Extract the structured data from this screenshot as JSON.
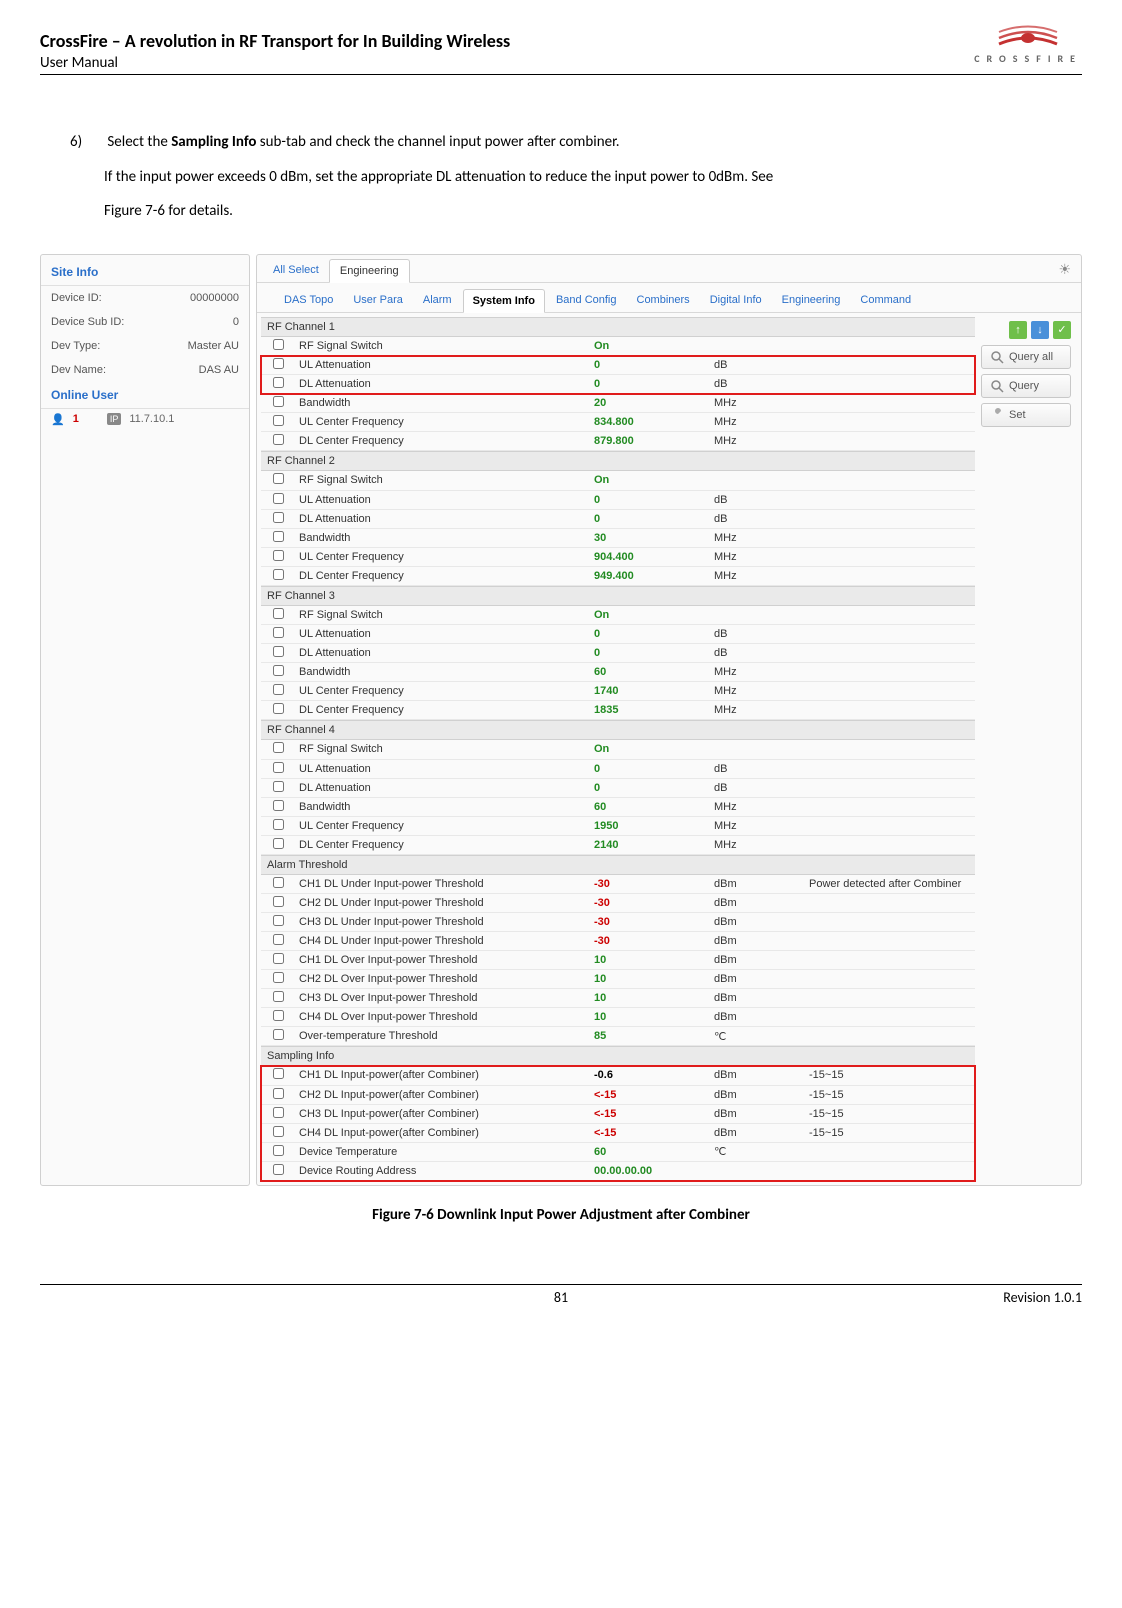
{
  "header": {
    "title": "CrossFire – A revolution in RF Transport for In Building Wireless",
    "subtitle": "User Manual",
    "logo_text": "CROSSFIRE",
    "logo_color": "#c43131"
  },
  "body": {
    "step_num": "6)",
    "line1_pre": "Select the ",
    "line1_bold": "Sampling Info",
    "line1_post": " sub-tab and check the channel input power after combiner.",
    "line2": "If the input power exceeds 0 dBm, set the appropriate DL attenuation to reduce the input power to 0dBm. See",
    "line3": "Figure 7-6 for details."
  },
  "sidebar": {
    "site_info_label": "Site Info",
    "rows": [
      {
        "label": "Device ID:",
        "value": "00000000"
      },
      {
        "label": "Device Sub ID:",
        "value": "0"
      },
      {
        "label": "Dev Type:",
        "value": "Master AU"
      },
      {
        "label": "Dev Name:",
        "value": "DAS AU"
      }
    ],
    "online_user_label": "Online User",
    "online_user_num": "1",
    "online_ip_label": "IP",
    "online_ip": "11.7.10.1"
  },
  "top_tabs": {
    "all_select": "All Select",
    "engineering": "Engineering"
  },
  "sub_tabs": [
    "DAS Topo",
    "User Para",
    "Alarm",
    "System Info",
    "Band Config",
    "Combiners",
    "Digital Info",
    "Engineering",
    "Command"
  ],
  "sub_tab_active": 3,
  "buttons": {
    "query_all": "Query all",
    "query": "Query",
    "set": "Set",
    "icon_up_color": "#6fbf4a",
    "icon_down_color": "#4a90d9",
    "icon_check_color": "#6fbf4a"
  },
  "groups": [
    {
      "header": "RF Channel 1",
      "highlight_rows": [
        1,
        2
      ],
      "rows": [
        {
          "label": "RF Signal Switch",
          "value": "On",
          "cls": "green",
          "unit": "",
          "note": ""
        },
        {
          "label": "UL Attenuation",
          "value": "0",
          "cls": "green",
          "unit": "dB",
          "note": ""
        },
        {
          "label": "DL Attenuation",
          "value": "0",
          "cls": "green",
          "unit": "dB",
          "note": ""
        },
        {
          "label": "Bandwidth",
          "value": "20",
          "cls": "green",
          "unit": "MHz",
          "note": ""
        },
        {
          "label": "UL Center Frequency",
          "value": "834.800",
          "cls": "green",
          "unit": "MHz",
          "note": ""
        },
        {
          "label": "DL Center Frequency",
          "value": "879.800",
          "cls": "green",
          "unit": "MHz",
          "note": ""
        }
      ]
    },
    {
      "header": "RF Channel 2",
      "rows": [
        {
          "label": "RF Signal Switch",
          "value": "On",
          "cls": "green",
          "unit": "",
          "note": ""
        },
        {
          "label": "UL Attenuation",
          "value": "0",
          "cls": "green",
          "unit": "dB",
          "note": ""
        },
        {
          "label": "DL Attenuation",
          "value": "0",
          "cls": "green",
          "unit": "dB",
          "note": ""
        },
        {
          "label": "Bandwidth",
          "value": "30",
          "cls": "green",
          "unit": "MHz",
          "note": ""
        },
        {
          "label": "UL Center Frequency",
          "value": "904.400",
          "cls": "green",
          "unit": "MHz",
          "note": ""
        },
        {
          "label": "DL Center Frequency",
          "value": "949.400",
          "cls": "green",
          "unit": "MHz",
          "note": ""
        }
      ]
    },
    {
      "header": "RF Channel 3",
      "rows": [
        {
          "label": "RF Signal Switch",
          "value": "On",
          "cls": "green",
          "unit": "",
          "note": ""
        },
        {
          "label": "UL Attenuation",
          "value": "0",
          "cls": "green",
          "unit": "dB",
          "note": ""
        },
        {
          "label": "DL Attenuation",
          "value": "0",
          "cls": "green",
          "unit": "dB",
          "note": ""
        },
        {
          "label": "Bandwidth",
          "value": "60",
          "cls": "green",
          "unit": "MHz",
          "note": ""
        },
        {
          "label": "UL Center Frequency",
          "value": "1740",
          "cls": "green",
          "unit": "MHz",
          "note": ""
        },
        {
          "label": "DL Center Frequency",
          "value": "1835",
          "cls": "green",
          "unit": "MHz",
          "note": ""
        }
      ]
    },
    {
      "header": "RF Channel 4",
      "rows": [
        {
          "label": "RF Signal Switch",
          "value": "On",
          "cls": "green",
          "unit": "",
          "note": ""
        },
        {
          "label": "UL Attenuation",
          "value": "0",
          "cls": "green",
          "unit": "dB",
          "note": ""
        },
        {
          "label": "DL Attenuation",
          "value": "0",
          "cls": "green",
          "unit": "dB",
          "note": ""
        },
        {
          "label": "Bandwidth",
          "value": "60",
          "cls": "green",
          "unit": "MHz",
          "note": ""
        },
        {
          "label": "UL Center Frequency",
          "value": "1950",
          "cls": "green",
          "unit": "MHz",
          "note": ""
        },
        {
          "label": "DL Center Frequency",
          "value": "2140",
          "cls": "green",
          "unit": "MHz",
          "note": ""
        }
      ]
    },
    {
      "header": "Alarm Threshold",
      "rows": [
        {
          "label": "CH1 DL Under Input-power Threshold",
          "value": "-30",
          "cls": "red",
          "unit": "dBm",
          "note": "Power detected after Combiner"
        },
        {
          "label": "CH2 DL Under Input-power Threshold",
          "value": "-30",
          "cls": "red",
          "unit": "dBm",
          "note": ""
        },
        {
          "label": "CH3 DL Under Input-power Threshold",
          "value": "-30",
          "cls": "red",
          "unit": "dBm",
          "note": ""
        },
        {
          "label": "CH4 DL Under Input-power Threshold",
          "value": "-30",
          "cls": "red",
          "unit": "dBm",
          "note": ""
        },
        {
          "label": "CH1 DL Over Input-power Threshold",
          "value": "10",
          "cls": "green",
          "unit": "dBm",
          "note": ""
        },
        {
          "label": "CH2 DL Over Input-power Threshold",
          "value": "10",
          "cls": "green",
          "unit": "dBm",
          "note": ""
        },
        {
          "label": "CH3 DL Over Input-power Threshold",
          "value": "10",
          "cls": "green",
          "unit": "dBm",
          "note": ""
        },
        {
          "label": "CH4 DL Over Input-power Threshold",
          "value": "10",
          "cls": "green",
          "unit": "dBm",
          "note": ""
        },
        {
          "label": "Over-temperature Threshold",
          "value": "85",
          "cls": "green",
          "unit": "℃",
          "note": ""
        }
      ]
    },
    {
      "header": "Sampling Info",
      "highlight_all": true,
      "rows": [
        {
          "label": "CH1 DL Input-power(after Combiner)",
          "value": "-0.6",
          "cls": "black",
          "unit": "dBm",
          "note": "-15~15"
        },
        {
          "label": "CH2 DL Input-power(after Combiner)",
          "value": "<-15",
          "cls": "red",
          "unit": "dBm",
          "note": "-15~15"
        },
        {
          "label": "CH3 DL Input-power(after Combiner)",
          "value": "<-15",
          "cls": "red",
          "unit": "dBm",
          "note": "-15~15"
        },
        {
          "label": "CH4 DL Input-power(after Combiner)",
          "value": "<-15",
          "cls": "red",
          "unit": "dBm",
          "note": "-15~15"
        },
        {
          "label": "Device Temperature",
          "value": "60",
          "cls": "green",
          "unit": "℃",
          "note": ""
        },
        {
          "label": "Device Routing Address",
          "value": "00.00.00.00",
          "cls": "green",
          "unit": "",
          "note": ""
        }
      ]
    }
  ],
  "figure_caption": "Figure 7-6 Downlink Input Power Adjustment after Combiner",
  "footer": {
    "page": "81",
    "rev": "Revision 1.0.1"
  }
}
